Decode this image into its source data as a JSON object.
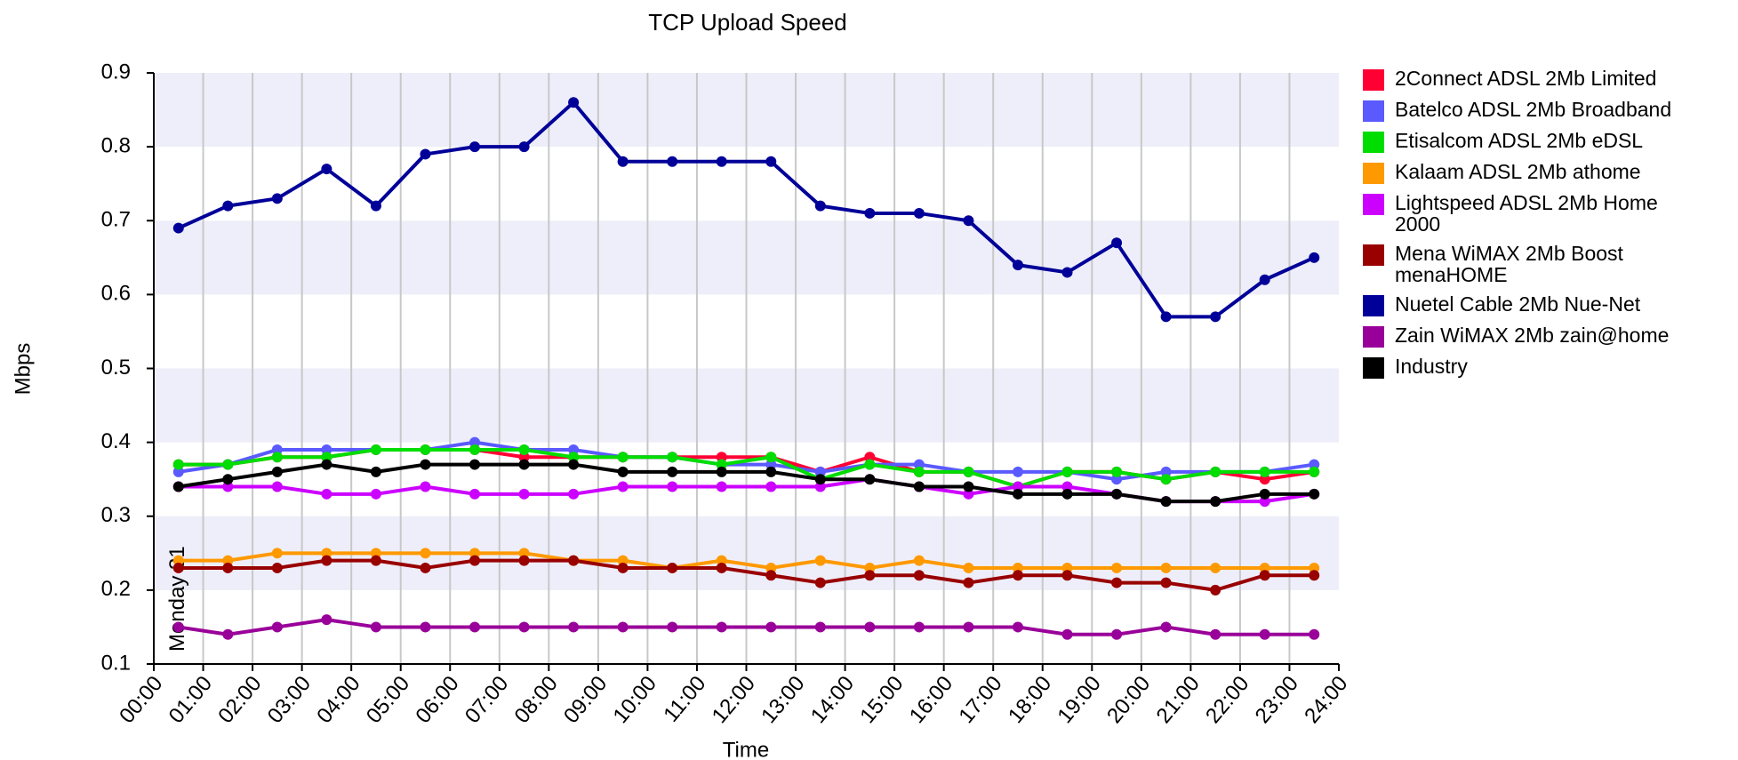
{
  "chart_data": {
    "type": "line",
    "title": "TCP Upload Speed",
    "x_label": "Time",
    "y_label": "Mbps",
    "annotation": "Monday 31",
    "annotation_x": 0.5,
    "x": [
      0.5,
      1.5,
      2.5,
      3.5,
      4.5,
      5.5,
      6.5,
      7.5,
      8.5,
      9.5,
      10.5,
      11.5,
      12.5,
      13.5,
      14.5,
      15.5,
      16.5,
      17.5,
      18.5,
      19.5,
      20.5,
      21.5,
      22.5,
      23.5
    ],
    "xlim": [
      0,
      24
    ],
    "xticks": [
      {
        "value": 0,
        "label": "00:00"
      },
      {
        "value": 1,
        "label": "01:00"
      },
      {
        "value": 2,
        "label": "02:00"
      },
      {
        "value": 3,
        "label": "03:00"
      },
      {
        "value": 4,
        "label": "04:00"
      },
      {
        "value": 5,
        "label": "05:00"
      },
      {
        "value": 6,
        "label": "06:00"
      },
      {
        "value": 7,
        "label": "07:00"
      },
      {
        "value": 8,
        "label": "08:00"
      },
      {
        "value": 9,
        "label": "09:00"
      },
      {
        "value": 10,
        "label": "10:00"
      },
      {
        "value": 11,
        "label": "11:00"
      },
      {
        "value": 12,
        "label": "12:00"
      },
      {
        "value": 13,
        "label": "13:00"
      },
      {
        "value": 14,
        "label": "14:00"
      },
      {
        "value": 15,
        "label": "15:00"
      },
      {
        "value": 16,
        "label": "16:00"
      },
      {
        "value": 17,
        "label": "17:00"
      },
      {
        "value": 18,
        "label": "18:00"
      },
      {
        "value": 19,
        "label": "19:00"
      },
      {
        "value": 20,
        "label": "20:00"
      },
      {
        "value": 21,
        "label": "21:00"
      },
      {
        "value": 22,
        "label": "22:00"
      },
      {
        "value": 23,
        "label": "23:00"
      },
      {
        "value": 24,
        "label": "24:00"
      }
    ],
    "ylim": [
      0.1,
      0.9
    ],
    "yticks": [
      0.1,
      0.2,
      0.3,
      0.4,
      0.5,
      0.6,
      0.7,
      0.8,
      0.9
    ],
    "grid": true,
    "band_color": "#eeeefa",
    "legend": "right",
    "series": [
      {
        "name": "2Connect ADSL 2Mb Limited",
        "color": "#ff0033",
        "values": [
          0.37,
          0.37,
          0.38,
          0.38,
          0.39,
          0.39,
          0.39,
          0.38,
          0.38,
          0.38,
          0.38,
          0.38,
          0.38,
          0.36,
          0.38,
          0.36,
          0.36,
          0.34,
          0.36,
          0.36,
          0.35,
          0.36,
          0.35,
          0.36
        ]
      },
      {
        "name": "Batelco ADSL 2Mb Broadband",
        "color": "#5a5aff",
        "values": [
          0.36,
          0.37,
          0.39,
          0.39,
          0.39,
          0.39,
          0.4,
          0.39,
          0.39,
          0.38,
          0.38,
          0.37,
          0.37,
          0.36,
          0.37,
          0.37,
          0.36,
          0.36,
          0.36,
          0.35,
          0.36,
          0.36,
          0.36,
          0.37
        ]
      },
      {
        "name": "Etisalcom ADSL 2Mb eDSL",
        "color": "#00dd00",
        "values": [
          0.37,
          0.37,
          0.38,
          0.38,
          0.39,
          0.39,
          0.39,
          0.39,
          0.38,
          0.38,
          0.38,
          0.37,
          0.38,
          0.35,
          0.37,
          0.36,
          0.36,
          0.34,
          0.36,
          0.36,
          0.35,
          0.36,
          0.36,
          0.36
        ]
      },
      {
        "name": "Kalaam ADSL 2Mb athome",
        "color": "#ff9900",
        "values": [
          0.24,
          0.24,
          0.25,
          0.25,
          0.25,
          0.25,
          0.25,
          0.25,
          0.24,
          0.24,
          0.23,
          0.24,
          0.23,
          0.24,
          0.23,
          0.24,
          0.23,
          0.23,
          0.23,
          0.23,
          0.23,
          0.23,
          0.23,
          0.23
        ]
      },
      {
        "name": "Lightspeed ADSL 2Mb Home 2000",
        "color": "#cc00ff",
        "values": [
          0.34,
          0.34,
          0.34,
          0.33,
          0.33,
          0.34,
          0.33,
          0.33,
          0.33,
          0.34,
          0.34,
          0.34,
          0.34,
          0.34,
          0.35,
          0.34,
          0.33,
          0.34,
          0.34,
          0.33,
          0.32,
          0.32,
          0.32,
          0.33
        ]
      },
      {
        "name": "Mena WiMAX 2Mb Boost menaHOME",
        "color": "#990000",
        "values": [
          0.23,
          0.23,
          0.23,
          0.24,
          0.24,
          0.23,
          0.24,
          0.24,
          0.24,
          0.23,
          0.23,
          0.23,
          0.22,
          0.21,
          0.22,
          0.22,
          0.21,
          0.22,
          0.22,
          0.21,
          0.21,
          0.2,
          0.22,
          0.22
        ]
      },
      {
        "name": "Nuetel Cable 2Mb Nue-Net",
        "color": "#000099",
        "values": [
          0.69,
          0.72,
          0.73,
          0.77,
          0.72,
          0.79,
          0.8,
          0.8,
          0.86,
          0.78,
          0.78,
          0.78,
          0.78,
          0.72,
          0.71,
          0.71,
          0.7,
          0.64,
          0.63,
          0.67,
          0.57,
          0.57,
          0.62,
          0.65
        ]
      },
      {
        "name": "Zain WiMAX 2Mb zain@home",
        "color": "#990099",
        "values": [
          0.15,
          0.14,
          0.15,
          0.16,
          0.15,
          0.15,
          0.15,
          0.15,
          0.15,
          0.15,
          0.15,
          0.15,
          0.15,
          0.15,
          0.15,
          0.15,
          0.15,
          0.15,
          0.14,
          0.14,
          0.15,
          0.14,
          0.14,
          0.14
        ]
      },
      {
        "name": "Industry",
        "color": "#000000",
        "values": [
          0.34,
          0.35,
          0.36,
          0.37,
          0.36,
          0.37,
          0.37,
          0.37,
          0.37,
          0.36,
          0.36,
          0.36,
          0.36,
          0.35,
          0.35,
          0.34,
          0.34,
          0.33,
          0.33,
          0.33,
          0.32,
          0.32,
          0.33,
          0.33
        ]
      }
    ]
  }
}
